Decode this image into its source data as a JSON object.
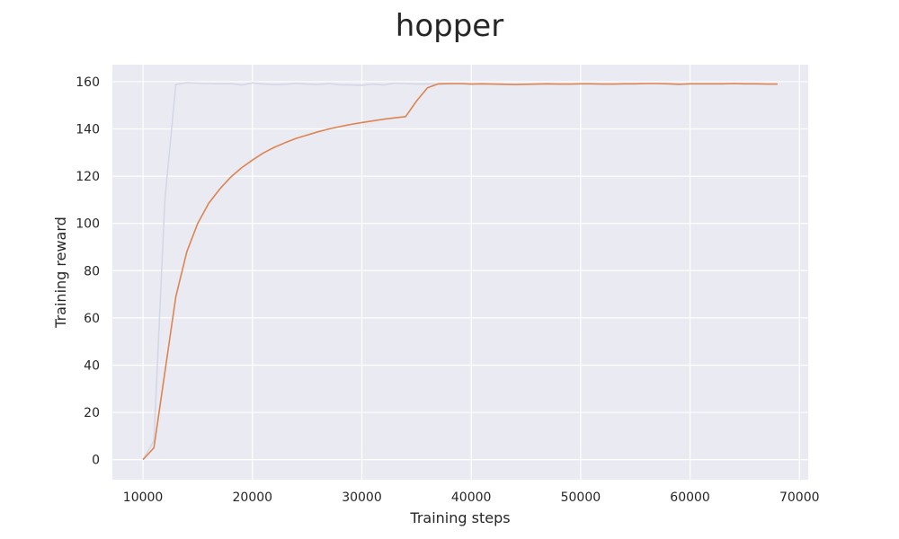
{
  "chart_data": {
    "type": "line",
    "title": "hopper",
    "xlabel": "Training steps",
    "ylabel": "Training reward",
    "xlim": [
      7200,
      70800
    ],
    "ylim": [
      -8.5,
      167.2
    ],
    "x_ticks": [
      10000,
      20000,
      30000,
      40000,
      50000,
      60000,
      70000
    ],
    "y_ticks": [
      0,
      20,
      40,
      60,
      80,
      100,
      120,
      140,
      160
    ],
    "grid": true,
    "legend": "none",
    "background_color": "#eaeaf2",
    "series": [
      {
        "color": "#d4d8e6",
        "x": [
          10000,
          11000,
          12000,
          13000,
          14000,
          15000,
          16000,
          17000,
          18000,
          19000,
          20000,
          21000,
          22000,
          23000,
          24000,
          25000,
          26000,
          27000,
          28000,
          29000,
          30000,
          31000,
          32000,
          33000,
          34000,
          35000,
          36000,
          37000,
          38000,
          39000,
          40000
        ],
        "y": [
          0,
          8,
          110,
          158.8,
          159.6,
          159.4,
          159.2,
          159.1,
          159.2,
          158.6,
          159.5,
          159.0,
          158.8,
          158.9,
          159.3,
          159.0,
          158.8,
          159.2,
          158.7,
          158.6,
          158.5,
          159.0,
          158.6,
          159.4,
          159.2,
          159.0,
          159.1,
          158.9,
          159.0,
          159.1,
          159.0
        ]
      },
      {
        "color": "#dd8452",
        "x": [
          10000,
          11000,
          12000,
          13000,
          14000,
          15000,
          16000,
          17000,
          18000,
          19000,
          20000,
          21000,
          22000,
          23000,
          24000,
          25000,
          26000,
          27000,
          28000,
          29000,
          30000,
          31000,
          32000,
          33000,
          34000,
          35000,
          36000,
          37000,
          38000,
          39000,
          40000,
          41000,
          42000,
          43000,
          44000,
          45000,
          46000,
          47000,
          48000,
          49000,
          50000,
          51000,
          52000,
          53000,
          54000,
          55000,
          56000,
          57000,
          58000,
          59000,
          60000,
          61000,
          62000,
          63000,
          64000,
          65000,
          66000,
          67000,
          68000
        ],
        "y": [
          0,
          5,
          37,
          69,
          88,
          100,
          108.5,
          114.5,
          119.5,
          123.5,
          126.8,
          129.8,
          132.2,
          134.2,
          136.0,
          137.4,
          138.8,
          140.0,
          141.0,
          141.9,
          142.7,
          143.4,
          144.1,
          144.7,
          145.2,
          151.8,
          157.4,
          159.1,
          159.2,
          159.2,
          159.0,
          159.1,
          159.0,
          158.9,
          158.8,
          158.9,
          159.0,
          159.1,
          159.0,
          159.0,
          159.1,
          159.1,
          159.0,
          159.0,
          159.1,
          159.1,
          159.2,
          159.2,
          159.1,
          158.9,
          159.1,
          159.1,
          159.1,
          159.1,
          159.2,
          159.1,
          159.1,
          159.0,
          159.0
        ]
      }
    ]
  }
}
